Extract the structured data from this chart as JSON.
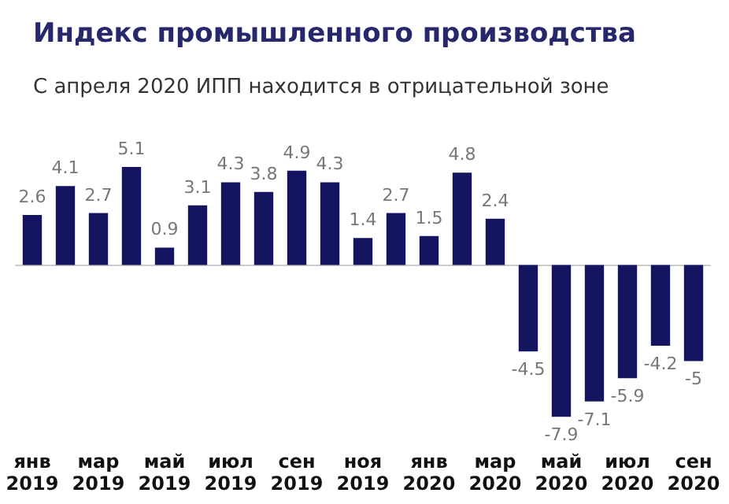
{
  "chart_data": {
    "type": "bar",
    "title": "Индекс промышленного производства",
    "subtitle": "С апреля 2020 ИПП находится в отрицательной зоне",
    "categories": [
      "янв\n2019",
      null,
      "мар\n2019",
      null,
      "май\n2019",
      null,
      "июл\n2019",
      null,
      "сен\n2019",
      null,
      "ноя\n2019",
      null,
      "янв\n2020",
      null,
      "мар\n2020",
      null,
      "май\n2020",
      null,
      "июл\n2020",
      null,
      "сен\n2020"
    ],
    "values": [
      2.6,
      4.1,
      2.7,
      5.1,
      0.9,
      3.1,
      4.3,
      3.8,
      4.9,
      4.3,
      1.4,
      2.7,
      1.5,
      4.8,
      2.4,
      -4.5,
      -7.9,
      -7.1,
      -5.9,
      -4.2,
      -5
    ],
    "color": "#141460",
    "data_labels": true
  }
}
